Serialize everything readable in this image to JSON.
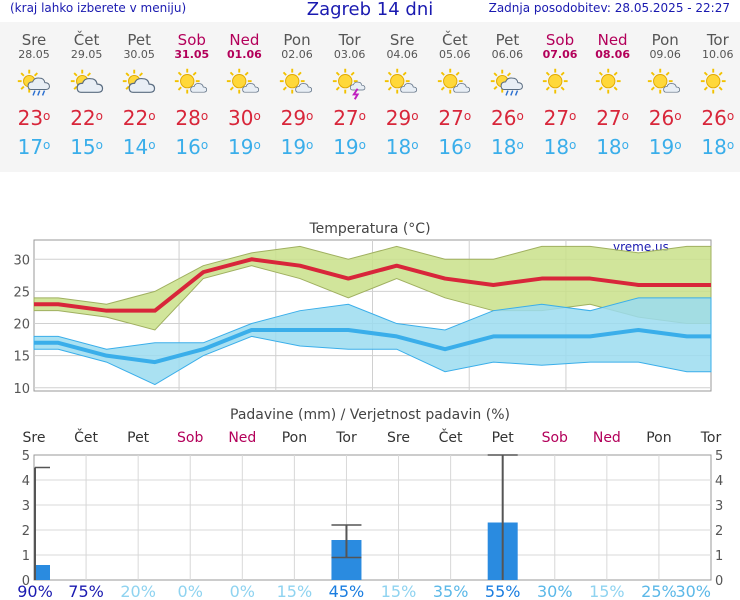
{
  "header": {
    "hint": "(kraj lahko izberete v meniju)",
    "title": "Zagreb 14 dni",
    "updated": "Zadnja posodobitev: 28.05.2025 - 22:27"
  },
  "days": [
    {
      "name": "Sre",
      "date": "28.05",
      "weekend": false,
      "icon": "sun-cloud-rain-icon",
      "tmax": "23",
      "tmin": "17"
    },
    {
      "name": "Čet",
      "date": "29.05",
      "weekend": false,
      "icon": "sun-cloud-icon",
      "tmax": "22",
      "tmin": "15"
    },
    {
      "name": "Pet",
      "date": "30.05",
      "weekend": false,
      "icon": "sun-cloud-icon",
      "tmax": "22",
      "tmin": "14"
    },
    {
      "name": "Sob",
      "date": "31.05",
      "weekend": true,
      "icon": "sun-small-cloud-icon",
      "tmax": "28",
      "tmin": "16"
    },
    {
      "name": "Ned",
      "date": "01.06",
      "weekend": true,
      "icon": "sun-small-cloud-icon",
      "tmax": "30",
      "tmin": "19"
    },
    {
      "name": "Pon",
      "date": "02.06",
      "weekend": false,
      "icon": "sun-small-cloud-icon",
      "tmax": "29",
      "tmin": "19"
    },
    {
      "name": "Tor",
      "date": "03.06",
      "weekend": false,
      "icon": "sun-cloud-storm-icon",
      "tmax": "27",
      "tmin": "19"
    },
    {
      "name": "Sre",
      "date": "04.06",
      "weekend": false,
      "icon": "sun-small-cloud-icon",
      "tmax": "29",
      "tmin": "18"
    },
    {
      "name": "Čet",
      "date": "05.06",
      "weekend": false,
      "icon": "sun-small-cloud-icon",
      "tmax": "27",
      "tmin": "16"
    },
    {
      "name": "Pet",
      "date": "06.06",
      "weekend": false,
      "icon": "sun-cloud-rain-icon",
      "tmax": "26",
      "tmin": "18"
    },
    {
      "name": "Sob",
      "date": "07.06",
      "weekend": true,
      "icon": "sun-icon",
      "tmax": "27",
      "tmin": "18"
    },
    {
      "name": "Ned",
      "date": "08.06",
      "weekend": true,
      "icon": "sun-icon",
      "tmax": "27",
      "tmin": "18"
    },
    {
      "name": "Pon",
      "date": "09.06",
      "weekend": false,
      "icon": "sun-small-cloud-icon",
      "tmax": "26",
      "tmin": "19"
    },
    {
      "name": "Tor",
      "date": "10.06",
      "weekend": false,
      "icon": "sun-icon",
      "tmax": "26",
      "tmin": "18"
    }
  ],
  "chart_data": [
    {
      "type": "area",
      "title": "Temperatura (°C)",
      "watermark": "vreme.us",
      "x": [
        "28.05",
        "29.05",
        "30.05",
        "31.05",
        "01.06",
        "02.06",
        "03.06",
        "04.06",
        "05.06",
        "06.06",
        "07.06",
        "08.06",
        "09.06",
        "10.06"
      ],
      "ylim": [
        9.5,
        33
      ],
      "yticks": [
        10,
        15,
        20,
        25,
        30
      ],
      "grid": true,
      "series": [
        {
          "values": [
            23,
            22,
            22,
            28,
            30,
            29,
            27,
            29,
            27,
            26,
            27,
            27,
            26,
            26
          ],
          "color": "#d8263a"
        },
        {
          "values": [
            24,
            23,
            25,
            29,
            31,
            32,
            30,
            32,
            30,
            30,
            32,
            32,
            31,
            32
          ],
          "color": "#c9e08a"
        },
        {
          "values": [
            22,
            21,
            19,
            27,
            29,
            27,
            24,
            27,
            24,
            22,
            22,
            23,
            21,
            20
          ],
          "color": "#c9e08a"
        },
        {
          "values": [
            17,
            15,
            14,
            16,
            19,
            19,
            19,
            18,
            16,
            18,
            18,
            18,
            19,
            18
          ],
          "color": "#3aaeea"
        },
        {
          "values": [
            18,
            16,
            17,
            17,
            20,
            22,
            23,
            20,
            19,
            22,
            23,
            22,
            24,
            24
          ],
          "color": "#9bdcf0"
        },
        {
          "values": [
            16,
            14,
            10.5,
            15,
            18,
            16.5,
            16,
            16,
            12.5,
            14,
            13.5,
            14,
            14,
            12.5
          ],
          "color": "#9bdcf0"
        }
      ]
    },
    {
      "type": "bar",
      "title": "Padavine (mm) / Verjetnost padavin (%)",
      "categories": [
        "Sre",
        "Čet",
        "Pet",
        "Sob",
        "Ned",
        "Pon",
        "Tor",
        "Sre",
        "Čet",
        "Pet",
        "Sob",
        "Ned",
        "Pon",
        "Tor"
      ],
      "weekend": [
        false,
        false,
        false,
        true,
        true,
        false,
        false,
        false,
        false,
        false,
        true,
        true,
        false,
        false
      ],
      "ylim": [
        0,
        5
      ],
      "yticks": [
        0,
        1,
        2,
        3,
        4,
        5
      ],
      "values": [
        0.6,
        0,
        0,
        0,
        0,
        0,
        1.6,
        0,
        0,
        2.3,
        0,
        0,
        0,
        0
      ],
      "err_high": [
        4.5,
        0,
        0,
        0,
        0,
        0,
        2.2,
        0,
        0,
        5,
        0,
        0,
        0,
        0
      ],
      "err_low": [
        0,
        0,
        0,
        0,
        0,
        0,
        0.9,
        0,
        0,
        0,
        0,
        0,
        0,
        0
      ],
      "probability": [
        "90%",
        "75%",
        "20%",
        "0%",
        "0%",
        "15%",
        "45%",
        "15%",
        "35%",
        "55%",
        "30%",
        "15%",
        "25%",
        "30%"
      ],
      "probability_colors": [
        "#1a1ab0",
        "#1a1ab0",
        "#8fd3f0",
        "#8fd3f0",
        "#8fd3f0",
        "#8fd3f0",
        "#1a7de0",
        "#8fd3f0",
        "#5bb8e8",
        "#1a7de0",
        "#5bb8e8",
        "#8fd3f0",
        "#5bb8e8",
        "#5bb8e8"
      ],
      "bar_color": "#2a8be0"
    }
  ]
}
